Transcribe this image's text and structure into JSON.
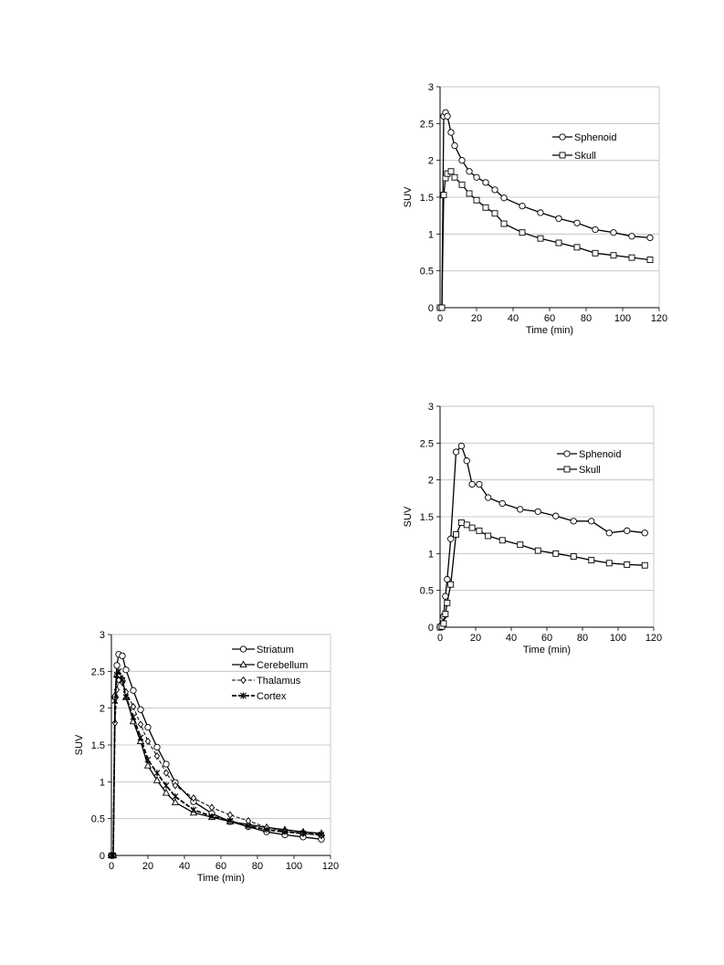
{
  "chart_data": [
    {
      "id": "upper-right",
      "type": "line",
      "xlabel": "Time (min)",
      "ylabel": "SUV",
      "xlim": [
        0,
        120
      ],
      "ylim": [
        0,
        3
      ],
      "xticks": [
        "0",
        "20",
        "40",
        "60",
        "80",
        "100",
        "120"
      ],
      "yticks": [
        "0",
        "0.5",
        "1",
        "1.5",
        "2",
        "2.5",
        "3"
      ],
      "grid": "horizontal",
      "legend_position": "top-right",
      "series": [
        {
          "name": "Sphenoid",
          "marker": "circle",
          "dash": "solid",
          "x": [
            0,
            1,
            2,
            3,
            4,
            6,
            8,
            12,
            16,
            20,
            25,
            30,
            35,
            45,
            55,
            65,
            75,
            85,
            95,
            105,
            115
          ],
          "y": [
            0,
            0,
            2.6,
            2.65,
            2.6,
            2.38,
            2.2,
            2.0,
            1.85,
            1.77,
            1.7,
            1.6,
            1.49,
            1.38,
            1.29,
            1.21,
            1.15,
            1.06,
            1.02,
            0.97,
            0.95
          ]
        },
        {
          "name": "Skull",
          "marker": "square",
          "dash": "solid",
          "x": [
            0,
            1,
            2,
            3,
            4,
            6,
            8,
            12,
            16,
            20,
            25,
            30,
            35,
            45,
            55,
            65,
            75,
            85,
            95,
            105,
            115
          ],
          "y": [
            0,
            0,
            1.53,
            1.76,
            1.82,
            1.85,
            1.77,
            1.67,
            1.55,
            1.46,
            1.36,
            1.28,
            1.14,
            1.02,
            0.94,
            0.88,
            0.82,
            0.74,
            0.71,
            0.68,
            0.65
          ]
        }
      ]
    },
    {
      "id": "middle-right",
      "type": "line",
      "xlabel": "Time (min)",
      "ylabel": "SUV",
      "xlim": [
        0,
        120
      ],
      "ylim": [
        0,
        3
      ],
      "xticks": [
        "0",
        "20",
        "40",
        "60",
        "80",
        "100",
        "120"
      ],
      "yticks": [
        "0",
        "0.5",
        "1",
        "1.5",
        "2",
        "2.5",
        "3"
      ],
      "grid": "horizontal",
      "legend_position": "top-right",
      "series": [
        {
          "name": "Sphenoid",
          "marker": "circle",
          "dash": "solid",
          "x": [
            0,
            1,
            2,
            3,
            4,
            6,
            9,
            12,
            15,
            18,
            22,
            27,
            35,
            45,
            55,
            65,
            75,
            85,
            95,
            105,
            115
          ],
          "y": [
            0,
            0.03,
            0.15,
            0.42,
            0.65,
            1.2,
            2.38,
            2.46,
            2.26,
            1.94,
            1.94,
            1.76,
            1.68,
            1.6,
            1.57,
            1.51,
            1.44,
            1.44,
            1.28,
            1.31,
            1.28
          ]
        },
        {
          "name": "Skull",
          "marker": "square",
          "dash": "solid",
          "x": [
            0,
            1,
            2,
            3,
            4,
            6,
            9,
            12,
            15,
            18,
            22,
            27,
            35,
            45,
            55,
            65,
            75,
            85,
            95,
            105,
            115
          ],
          "y": [
            0,
            0.01,
            0.05,
            0.18,
            0.33,
            0.58,
            1.26,
            1.42,
            1.39,
            1.35,
            1.31,
            1.24,
            1.18,
            1.12,
            1.04,
            1.0,
            0.96,
            0.91,
            0.87,
            0.85,
            0.84
          ]
        }
      ]
    },
    {
      "id": "lower-left",
      "type": "line",
      "xlabel": "Time (min)",
      "ylabel": "SUV",
      "xlim": [
        0,
        120
      ],
      "ylim": [
        0,
        3
      ],
      "xticks": [
        "0",
        "20",
        "40",
        "60",
        "80",
        "100",
        "120"
      ],
      "yticks": [
        "0",
        "0.5",
        "1",
        "1.5",
        "2",
        "2.5",
        "3"
      ],
      "grid": "horizontal",
      "legend_position": "top-right",
      "series": [
        {
          "name": "Striatum",
          "marker": "circle",
          "dash": "solid",
          "x": [
            0,
            1,
            2,
            3,
            4,
            6,
            8,
            12,
            16,
            20,
            25,
            30,
            35,
            45,
            55,
            65,
            75,
            85,
            95,
            105,
            115
          ],
          "y": [
            0,
            0,
            2.15,
            2.58,
            2.73,
            2.71,
            2.52,
            2.24,
            1.98,
            1.74,
            1.47,
            1.24,
            0.99,
            0.73,
            0.57,
            0.46,
            0.39,
            0.32,
            0.28,
            0.25,
            0.22
          ]
        },
        {
          "name": "Cerebellum",
          "marker": "triangle",
          "dash": "solid",
          "x": [
            0,
            1,
            2,
            3,
            4,
            6,
            8,
            12,
            16,
            20,
            25,
            30,
            35,
            45,
            55,
            65,
            75,
            85,
            95,
            105,
            115
          ],
          "y": [
            0,
            0,
            2.18,
            2.46,
            2.45,
            2.4,
            2.15,
            1.82,
            1.55,
            1.22,
            1.02,
            0.85,
            0.72,
            0.58,
            0.52,
            0.46,
            0.42,
            0.38,
            0.35,
            0.32,
            0.3
          ]
        },
        {
          "name": "Thalamus",
          "marker": "diamond",
          "dash": "dashed",
          "x": [
            0,
            1,
            2,
            3,
            4,
            6,
            8,
            12,
            16,
            20,
            25,
            30,
            35,
            45,
            55,
            65,
            75,
            85,
            95,
            105,
            115
          ],
          "y": [
            0,
            0,
            1.8,
            2.25,
            2.38,
            2.35,
            2.22,
            2.02,
            1.78,
            1.55,
            1.35,
            1.12,
            0.95,
            0.78,
            0.65,
            0.55,
            0.47,
            0.38,
            0.33,
            0.3,
            0.27
          ]
        },
        {
          "name": "Cortex",
          "marker": "cross",
          "dash": "dashed-bold",
          "x": [
            0,
            1,
            2,
            3,
            4,
            6,
            8,
            12,
            16,
            20,
            25,
            30,
            35,
            45,
            55,
            65,
            75,
            85,
            95,
            105,
            115
          ],
          "y": [
            0,
            0,
            2.1,
            2.45,
            2.5,
            2.38,
            2.15,
            1.88,
            1.6,
            1.3,
            1.12,
            0.95,
            0.8,
            0.62,
            0.53,
            0.47,
            0.4,
            0.35,
            0.32,
            0.3,
            0.28
          ]
        }
      ]
    }
  ]
}
